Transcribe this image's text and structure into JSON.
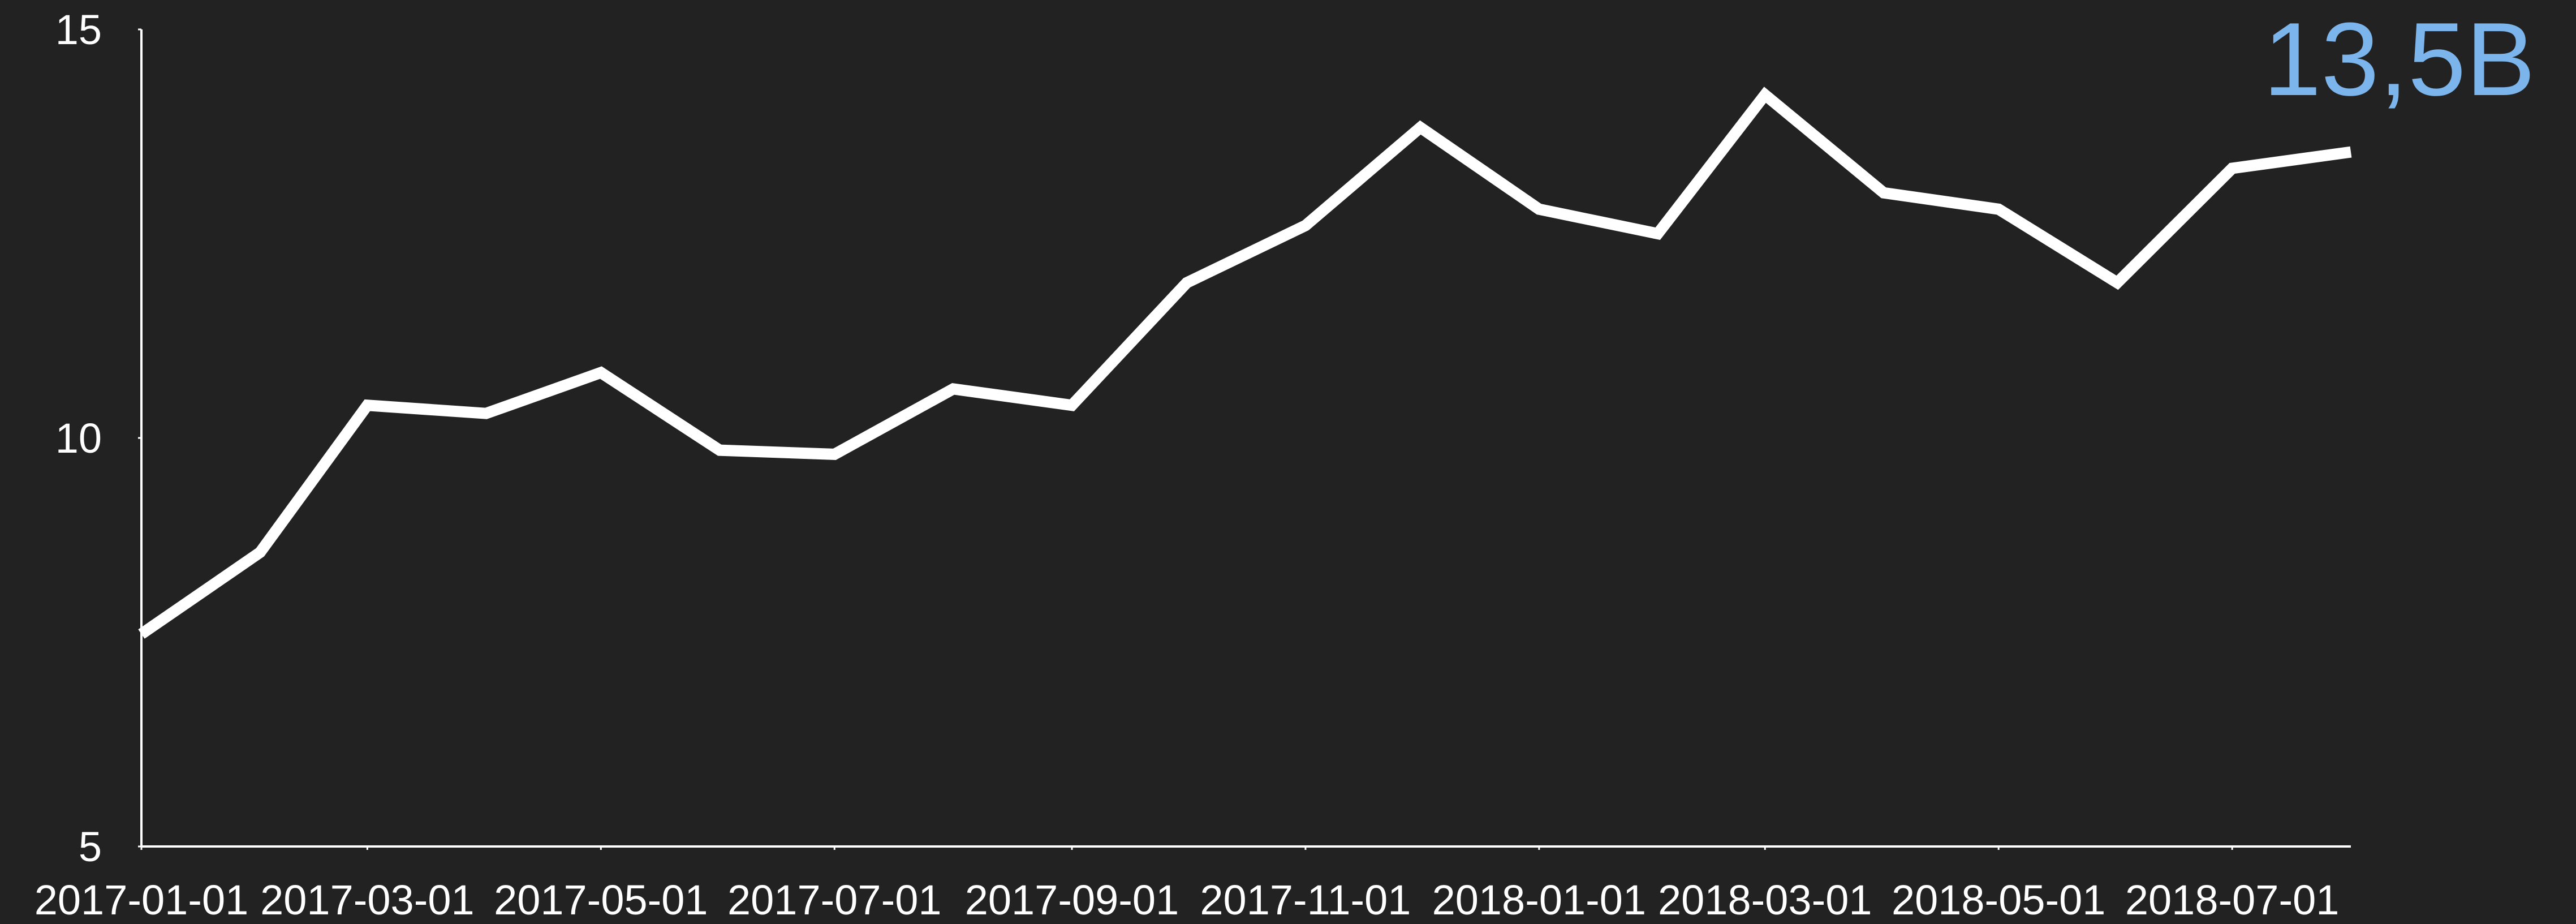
{
  "chart_data": {
    "type": "line",
    "x": [
      "2017-01-01",
      "2017-02-01",
      "2017-03-01",
      "2017-04-01",
      "2017-05-01",
      "2017-06-01",
      "2017-07-01",
      "2017-08-01",
      "2017-09-01",
      "2017-10-01",
      "2017-11-01",
      "2017-12-01",
      "2018-01-01",
      "2018-02-01",
      "2018-03-01",
      "2018-04-01",
      "2018-05-01",
      "2018-06-01",
      "2018-07-01",
      "2018-08-01"
    ],
    "series": [
      {
        "color": "#ffffff",
        "values": [
          7.6,
          8.6,
          10.4,
          10.3,
          10.8,
          9.85,
          9.8,
          10.6,
          10.4,
          11.9,
          12.6,
          13.8,
          12.8,
          12.5,
          14.2,
          13.0,
          12.8,
          11.9,
          13.3,
          13.5
        ]
      }
    ],
    "annotation": "13,5B",
    "annotation_color": "#7cb5ec",
    "xlim": [
      "2017-01-01",
      "2018-08-01"
    ],
    "xticks": [
      "2017-01-01",
      "2017-03-01",
      "2017-05-01",
      "2017-07-01",
      "2017-09-01",
      "2017-11-01",
      "2018-01-01",
      "2018-03-01",
      "2018-05-01",
      "2018-07-01"
    ],
    "ylim": [
      5,
      15
    ],
    "yticks": [
      5,
      10,
      15
    ]
  }
}
